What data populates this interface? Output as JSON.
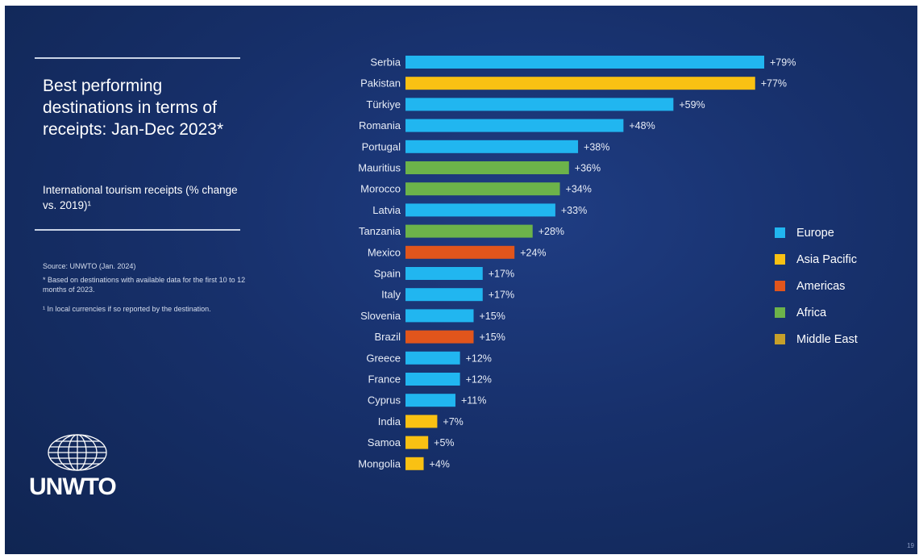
{
  "slide": {
    "title": "Best performing destinations in terms of receipts: Jan-Dec 2023*",
    "subtitle": "International tourism receipts (% change vs. 2019)¹",
    "source": "Source: UNWTO (Jan. 2024)",
    "footnote1": "* Based on destinations with available data for the first 10 to 12 months of 2023.",
    "footnote2": "¹ In local currencies if so reported by the destination.",
    "logo_text": "UNWTO",
    "page_number": "19"
  },
  "chart_data": {
    "type": "bar",
    "orientation": "horizontal",
    "title": "Best performing destinations in terms of receipts: Jan-Dec 2023*",
    "categories": [
      "Serbia",
      "Pakistan",
      "Türkiye",
      "Romania",
      "Portugal",
      "Mauritius",
      "Morocco",
      "Latvia",
      "Tanzania",
      "Mexico",
      "Spain",
      "Italy",
      "Slovenia",
      "Brazil",
      "Greece",
      "France",
      "Cyprus",
      "India",
      "Samoa",
      "Mongolia"
    ],
    "values": [
      79,
      77,
      59,
      48,
      38,
      36,
      34,
      33,
      28,
      24,
      17,
      17,
      15,
      15,
      12,
      12,
      11,
      7,
      5,
      4
    ],
    "value_labels": [
      "+79%",
      "+77%",
      "+59%",
      "+48%",
      "+38%",
      "+36%",
      "+34%",
      "+33%",
      "+28%",
      "+24%",
      "+17%",
      "+17%",
      "+15%",
      "+15%",
      "+12%",
      "+12%",
      "+11%",
      "+7%",
      "+5%",
      "+4%"
    ],
    "regions": [
      "Europe",
      "Asia Pacific",
      "Europe",
      "Europe",
      "Europe",
      "Africa",
      "Africa",
      "Europe",
      "Africa",
      "Americas",
      "Europe",
      "Europe",
      "Europe",
      "Americas",
      "Europe",
      "Europe",
      "Europe",
      "Asia Pacific",
      "Asia Pacific",
      "Asia Pacific"
    ],
    "xlim": [
      0,
      79
    ],
    "unit": "%",
    "grid": false,
    "legend": {
      "placement": "right",
      "entries": [
        {
          "name": "Europe",
          "color": "#21b6f0"
        },
        {
          "name": "Asia Pacific",
          "color": "#f9c113"
        },
        {
          "name": "Americas",
          "color": "#e1551c"
        },
        {
          "name": "Africa",
          "color": "#6cb34a"
        },
        {
          "name": "Middle East",
          "color": "#c7a02a"
        }
      ]
    }
  }
}
